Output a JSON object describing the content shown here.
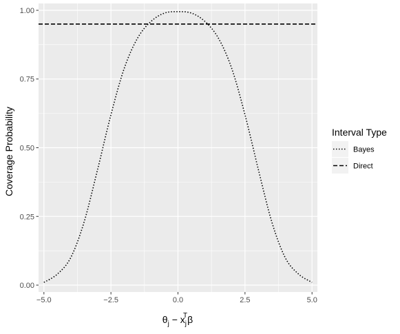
{
  "chart_data": {
    "type": "line",
    "xlabel_parts": {
      "theta": "θ",
      "j1": "j",
      "minus": " − ",
      "x": "x",
      "j2": "j",
      "T": "T",
      "beta": "β"
    },
    "ylabel": "Coverage Probability",
    "xlim": [
      -5.2,
      5.2
    ],
    "ylim": [
      -0.025,
      1.025
    ],
    "x_ticks": [
      -5.0,
      -2.5,
      0.0,
      2.5,
      5.0
    ],
    "x_tick_labels": [
      "−5.0",
      "−2.5",
      "0.0",
      "2.5",
      "5.0"
    ],
    "y_ticks": [
      0.0,
      0.25,
      0.5,
      0.75,
      1.0
    ],
    "y_tick_labels": [
      "0.00",
      "0.25",
      "0.50",
      "0.75",
      "1.00"
    ],
    "grid": true,
    "legend": {
      "title": "Interval Type",
      "placement": "right",
      "entries": [
        "Bayes",
        "Direct"
      ]
    },
    "series": [
      {
        "name": "Bayes",
        "linestyle": "dotted",
        "color": "#000000",
        "x": [
          -5.0,
          -4.5,
          -4.0,
          -3.5,
          -3.0,
          -2.5,
          -2.0,
          -1.5,
          -1.0,
          -0.5,
          0.0,
          0.5,
          1.0,
          1.5,
          2.0,
          2.5,
          3.0,
          3.5,
          4.0,
          4.5,
          5.0
        ],
        "y": [
          0.01,
          0.04,
          0.1,
          0.23,
          0.42,
          0.62,
          0.79,
          0.9,
          0.96,
          0.99,
          0.995,
          0.99,
          0.96,
          0.9,
          0.79,
          0.62,
          0.42,
          0.23,
          0.1,
          0.04,
          0.01
        ]
      },
      {
        "name": "Direct",
        "linestyle": "dashed",
        "color": "#000000",
        "x": [
          -5.2,
          5.2
        ],
        "y": [
          0.95,
          0.95
        ]
      }
    ]
  }
}
